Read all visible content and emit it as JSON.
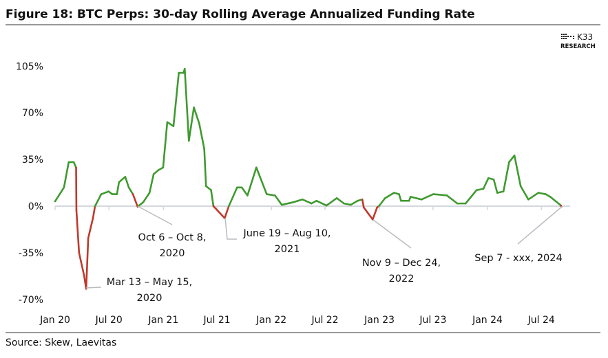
{
  "title": "Figure 18: BTC Perps: 30-day Rolling Average Annualized Funding Rate",
  "logo": {
    "name": "K33",
    "sub": "RESEARCH"
  },
  "source": "Source: Skew, Laevitas",
  "colors": {
    "positive": "#3f9a2f",
    "negative": "#c0392b",
    "axis": "#d4d7dc",
    "leader": "#b9bcc0"
  },
  "chart_data": {
    "type": "line",
    "title": "Figure 18: BTC Perps: 30-day Rolling Average Annualized Funding Rate",
    "xlabel": "",
    "ylabel": "",
    "ylim": [
      -70,
      105
    ],
    "xlim": [
      "2020-01-01",
      "2024-09-10"
    ],
    "grid": false,
    "y_ticks": [
      "105%",
      "70%",
      "35%",
      "0%",
      "-35%",
      "-70%"
    ],
    "y_tick_values": [
      105,
      70,
      35,
      0,
      -35,
      -70
    ],
    "x_ticks": [
      "Jan 20",
      "Jul 20",
      "Jan 21",
      "Jul 21",
      "Jan 22",
      "Jul 22",
      "Jan 23",
      "Jul 23",
      "Jan 24",
      "Jul 24"
    ],
    "x_tick_dates": [
      "2020-01-01",
      "2020-07-01",
      "2021-01-01",
      "2021-07-01",
      "2022-01-01",
      "2022-07-01",
      "2023-01-01",
      "2023-07-01",
      "2024-01-01",
      "2024-07-01"
    ],
    "series": [
      {
        "color_rule": "green when positive, red when negative",
        "points": [
          [
            "2020-01-01",
            3.6
          ],
          [
            "2020-01-31",
            14
          ],
          [
            "2020-02-16",
            33
          ],
          [
            "2020-03-04",
            33
          ],
          [
            "2020-03-12",
            29
          ],
          [
            "2020-03-13",
            -3
          ],
          [
            "2020-03-22",
            -35
          ],
          [
            "2020-04-08",
            -52
          ],
          [
            "2020-04-15",
            -62
          ],
          [
            "2020-04-22",
            -24
          ],
          [
            "2020-05-08",
            -9
          ],
          [
            "2020-05-15",
            0
          ],
          [
            "2020-06-05",
            9
          ],
          [
            "2020-06-30",
            11
          ],
          [
            "2020-07-12",
            9
          ],
          [
            "2020-07-28",
            9
          ],
          [
            "2020-08-04",
            18
          ],
          [
            "2020-08-25",
            22
          ],
          [
            "2020-09-06",
            14
          ],
          [
            "2020-09-20",
            9
          ],
          [
            "2020-10-06",
            -0.5
          ],
          [
            "2020-10-08",
            0
          ],
          [
            "2020-10-25",
            3
          ],
          [
            "2020-11-15",
            10
          ],
          [
            "2020-11-29",
            24
          ],
          [
            "2020-12-15",
            27
          ],
          [
            "2020-12-31",
            29
          ],
          [
            "2021-01-14",
            63
          ],
          [
            "2021-02-04",
            60
          ],
          [
            "2021-02-22",
            100
          ],
          [
            "2021-03-10",
            100
          ],
          [
            "2021-03-14",
            103
          ],
          [
            "2021-03-28",
            49
          ],
          [
            "2021-04-14",
            74
          ],
          [
            "2021-05-02",
            62
          ],
          [
            "2021-05-19",
            43
          ],
          [
            "2021-05-25",
            15
          ],
          [
            "2021-06-11",
            12
          ],
          [
            "2021-06-19",
            0
          ],
          [
            "2021-07-27",
            -9
          ],
          [
            "2021-08-10",
            0
          ],
          [
            "2021-09-07",
            14
          ],
          [
            "2021-09-23",
            14
          ],
          [
            "2021-10-12",
            8
          ],
          [
            "2021-11-11",
            29
          ],
          [
            "2021-12-16",
            9
          ],
          [
            "2022-01-13",
            8
          ],
          [
            "2022-02-05",
            1
          ],
          [
            "2022-03-17",
            3
          ],
          [
            "2022-04-16",
            5
          ],
          [
            "2022-05-16",
            2
          ],
          [
            "2022-06-02",
            4
          ],
          [
            "2022-07-06",
            0.5
          ],
          [
            "2022-08-10",
            6
          ],
          [
            "2022-09-03",
            2
          ],
          [
            "2022-09-26",
            1
          ],
          [
            "2022-10-19",
            4
          ],
          [
            "2022-11-04",
            5
          ],
          [
            "2022-11-09",
            -1
          ],
          [
            "2022-12-09",
            -10
          ],
          [
            "2022-12-24",
            -1
          ],
          [
            "2022-12-30",
            0
          ],
          [
            "2023-01-20",
            6
          ],
          [
            "2023-02-19",
            10
          ],
          [
            "2023-03-08",
            9
          ],
          [
            "2023-03-15",
            4
          ],
          [
            "2023-04-11",
            4
          ],
          [
            "2023-04-16",
            7
          ],
          [
            "2023-05-23",
            5
          ],
          [
            "2023-07-02",
            9
          ],
          [
            "2023-08-17",
            8
          ],
          [
            "2023-09-21",
            2
          ],
          [
            "2023-10-19",
            2
          ],
          [
            "2023-11-25",
            12
          ],
          [
            "2023-12-18",
            13
          ],
          [
            "2024-01-04",
            21
          ],
          [
            "2024-01-22",
            20
          ],
          [
            "2024-02-03",
            10
          ],
          [
            "2024-02-24",
            11
          ],
          [
            "2024-03-14",
            33
          ],
          [
            "2024-04-01",
            38
          ],
          [
            "2024-04-22",
            15
          ],
          [
            "2024-05-18",
            5
          ],
          [
            "2024-06-21",
            10
          ],
          [
            "2024-07-15",
            9
          ],
          [
            "2024-07-31",
            7
          ],
          [
            "2024-09-05",
            0.5
          ],
          [
            "2024-09-07",
            -0.5
          ]
        ]
      }
    ],
    "annotations": [
      {
        "lines": [
          "Mar 13 – May 15,",
          "2020"
        ]
      },
      {
        "lines": [
          "Oct 6 – Oct 8,",
          "2020"
        ]
      },
      {
        "lines": [
          "June 19 – Aug 10,",
          "2021"
        ]
      },
      {
        "lines": [
          "Nov 9 – Dec 24,",
          "2022"
        ]
      },
      {
        "lines": [
          "Sep 7 -  xxx, 2024"
        ]
      }
    ]
  }
}
